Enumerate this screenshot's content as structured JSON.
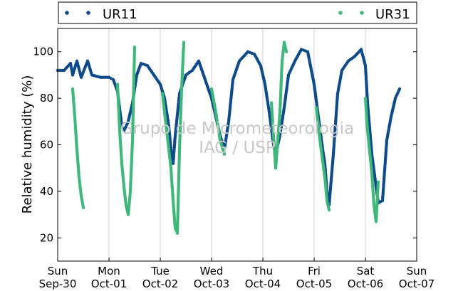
{
  "chart_data": {
    "type": "scatter",
    "ylabel": "Relative humidity (%)",
    "ylim": [
      10,
      110
    ],
    "yticks": [
      20,
      40,
      60,
      80,
      100
    ],
    "xlim": [
      "2023-09-30T00:00",
      "2023-10-07T00:00"
    ],
    "xticks": [
      {
        "line1": "Sun",
        "line2": "Sep-30"
      },
      {
        "line1": "Mon",
        "line2": "Oct-01"
      },
      {
        "line1": "Tue",
        "line2": "Oct-02"
      },
      {
        "line1": "Wed",
        "line2": "Oct-03"
      },
      {
        "line1": "Thu",
        "line2": "Oct-04"
      },
      {
        "line1": "Fri",
        "line2": "Oct-05"
      },
      {
        "line1": "Sat",
        "line2": "Oct-06"
      },
      {
        "line1": "Sun",
        "line2": "Oct-07"
      }
    ],
    "grid": "vertical",
    "legend_position": "top, outside plot",
    "watermark": [
      "Grupo de Micrometeorologia",
      "IAG / USP"
    ],
    "colors": {
      "UR11": "#0d4a8a",
      "UR31": "#3fb77a"
    },
    "series": [
      {
        "name": "UR11",
        "points": [
          [
            "2023-09-30T00:00",
            92
          ],
          [
            "2023-09-30T03:00",
            92
          ],
          [
            "2023-09-30T06:00",
            95
          ],
          [
            "2023-09-30T07:00",
            90
          ],
          [
            "2023-09-30T09:00",
            96
          ],
          [
            "2023-09-30T11:00",
            89
          ],
          [
            "2023-09-30T14:00",
            96
          ],
          [
            "2023-09-30T16:00",
            90
          ],
          [
            "2023-09-30T20:00",
            89
          ],
          [
            "2023-10-01T00:00",
            89
          ],
          [
            "2023-10-01T02:00",
            88
          ],
          [
            "2023-10-01T04:00",
            83
          ],
          [
            "2023-10-01T06:00",
            68
          ],
          [
            "2023-10-01T07:00",
            66
          ],
          [
            "2023-10-01T09:00",
            70
          ],
          [
            "2023-10-01T11:00",
            78
          ],
          [
            "2023-10-01T13:00",
            90
          ],
          [
            "2023-10-01T15:00",
            95
          ],
          [
            "2023-10-01T18:00",
            94
          ],
          [
            "2023-10-01T21:00",
            90
          ],
          [
            "2023-10-02T00:00",
            86
          ],
          [
            "2023-10-02T02:00",
            80
          ],
          [
            "2023-10-02T04:00",
            68
          ],
          [
            "2023-10-02T05:00",
            58
          ],
          [
            "2023-10-02T06:00",
            52
          ],
          [
            "2023-10-02T07:00",
            64
          ],
          [
            "2023-10-02T09:00",
            82
          ],
          [
            "2023-10-02T12:00",
            90
          ],
          [
            "2023-10-02T15:00",
            92
          ],
          [
            "2023-10-02T18:00",
            96
          ],
          [
            "2023-10-02T21:00",
            88
          ],
          [
            "2023-10-03T00:00",
            80
          ],
          [
            "2023-10-03T02:00",
            72
          ],
          [
            "2023-10-03T04:00",
            64
          ],
          [
            "2023-10-03T06:00",
            58
          ],
          [
            "2023-10-03T08:00",
            70
          ],
          [
            "2023-10-03T10:00",
            88
          ],
          [
            "2023-10-03T13:00",
            96
          ],
          [
            "2023-10-03T17:00",
            100
          ],
          [
            "2023-10-03T20:00",
            99
          ],
          [
            "2023-10-03T23:00",
            94
          ],
          [
            "2023-10-04T01:00",
            86
          ],
          [
            "2023-10-04T03:00",
            74
          ],
          [
            "2023-10-04T05:00",
            60
          ],
          [
            "2023-10-04T06:00",
            56
          ],
          [
            "2023-10-04T08:00",
            64
          ],
          [
            "2023-10-04T10:00",
            76
          ],
          [
            "2023-10-04T12:00",
            90
          ],
          [
            "2023-10-04T15:00",
            96
          ],
          [
            "2023-10-04T18:00",
            101
          ],
          [
            "2023-10-04T21:00",
            100
          ],
          [
            "2023-10-05T00:00",
            86
          ],
          [
            "2023-10-05T02:00",
            72
          ],
          [
            "2023-10-05T04:00",
            58
          ],
          [
            "2023-10-05T05:00",
            52
          ],
          [
            "2023-10-05T06:00",
            40
          ],
          [
            "2023-10-05T07:00",
            34
          ],
          [
            "2023-10-05T09:00",
            56
          ],
          [
            "2023-10-05T11:00",
            82
          ],
          [
            "2023-10-05T13:00",
            92
          ],
          [
            "2023-10-05T16:00",
            96
          ],
          [
            "2023-10-05T19:00",
            98
          ],
          [
            "2023-10-05T22:00",
            101
          ],
          [
            "2023-10-06T00:00",
            94
          ],
          [
            "2023-10-06T01:00",
            78
          ],
          [
            "2023-10-06T03:00",
            56
          ],
          [
            "2023-10-06T05:00",
            42
          ],
          [
            "2023-10-06T06:00",
            35
          ],
          [
            "2023-10-06T08:00",
            36
          ],
          [
            "2023-10-06T10:00",
            62
          ],
          [
            "2023-10-06T12:00",
            72
          ],
          [
            "2023-10-06T14:00",
            80
          ],
          [
            "2023-10-06T16:00",
            84
          ]
        ]
      },
      {
        "name": "UR31",
        "points": [
          [
            "2023-09-30T07:00",
            84
          ],
          [
            "2023-09-30T08:00",
            72
          ],
          [
            "2023-09-30T09:00",
            58
          ],
          [
            "2023-09-30T10:00",
            46
          ],
          [
            "2023-09-30T11:00",
            38
          ],
          [
            "2023-09-30T12:00",
            33
          ],
          [
            "2023-10-01T04:00",
            86
          ],
          [
            "2023-10-01T05:00",
            66
          ],
          [
            "2023-10-01T06:00",
            52
          ],
          [
            "2023-10-01T07:00",
            42
          ],
          [
            "2023-10-01T08:00",
            34
          ],
          [
            "2023-10-01T09:00",
            30
          ],
          [
            "2023-10-01T10:00",
            40
          ],
          [
            "2023-10-01T11:00",
            62
          ],
          [
            "2023-10-01T12:00",
            102
          ],
          [
            "2023-10-02T01:00",
            82
          ],
          [
            "2023-10-02T03:00",
            66
          ],
          [
            "2023-10-02T05:00",
            50
          ],
          [
            "2023-10-02T06:00",
            36
          ],
          [
            "2023-10-02T07:00",
            24
          ],
          [
            "2023-10-02T08:00",
            22
          ],
          [
            "2023-10-02T09:00",
            58
          ],
          [
            "2023-10-02T10:00",
            84
          ],
          [
            "2023-10-02T11:00",
            104
          ],
          [
            "2023-10-03T00:00",
            84
          ],
          [
            "2023-10-03T02:00",
            74
          ],
          [
            "2023-10-03T04:00",
            62
          ],
          [
            "2023-10-03T06:00",
            56
          ],
          [
            "2023-10-04T04:00",
            78
          ],
          [
            "2023-10-04T05:00",
            64
          ],
          [
            "2023-10-04T06:00",
            50
          ],
          [
            "2023-10-04T07:00",
            62
          ],
          [
            "2023-10-04T08:00",
            74
          ],
          [
            "2023-10-04T09:00",
            96
          ],
          [
            "2023-10-04T10:00",
            104
          ],
          [
            "2023-10-04T11:00",
            100
          ],
          [
            "2023-10-05T01:00",
            76
          ],
          [
            "2023-10-05T03:00",
            60
          ],
          [
            "2023-10-05T05:00",
            46
          ],
          [
            "2023-10-05T06:00",
            36
          ],
          [
            "2023-10-05T07:00",
            32
          ],
          [
            "2023-10-06T00:00",
            80
          ],
          [
            "2023-10-06T01:00",
            66
          ],
          [
            "2023-10-06T03:00",
            48
          ],
          [
            "2023-10-06T04:00",
            34
          ],
          [
            "2023-10-06T05:00",
            27
          ],
          [
            "2023-10-06T06:00",
            44
          ]
        ]
      }
    ]
  }
}
